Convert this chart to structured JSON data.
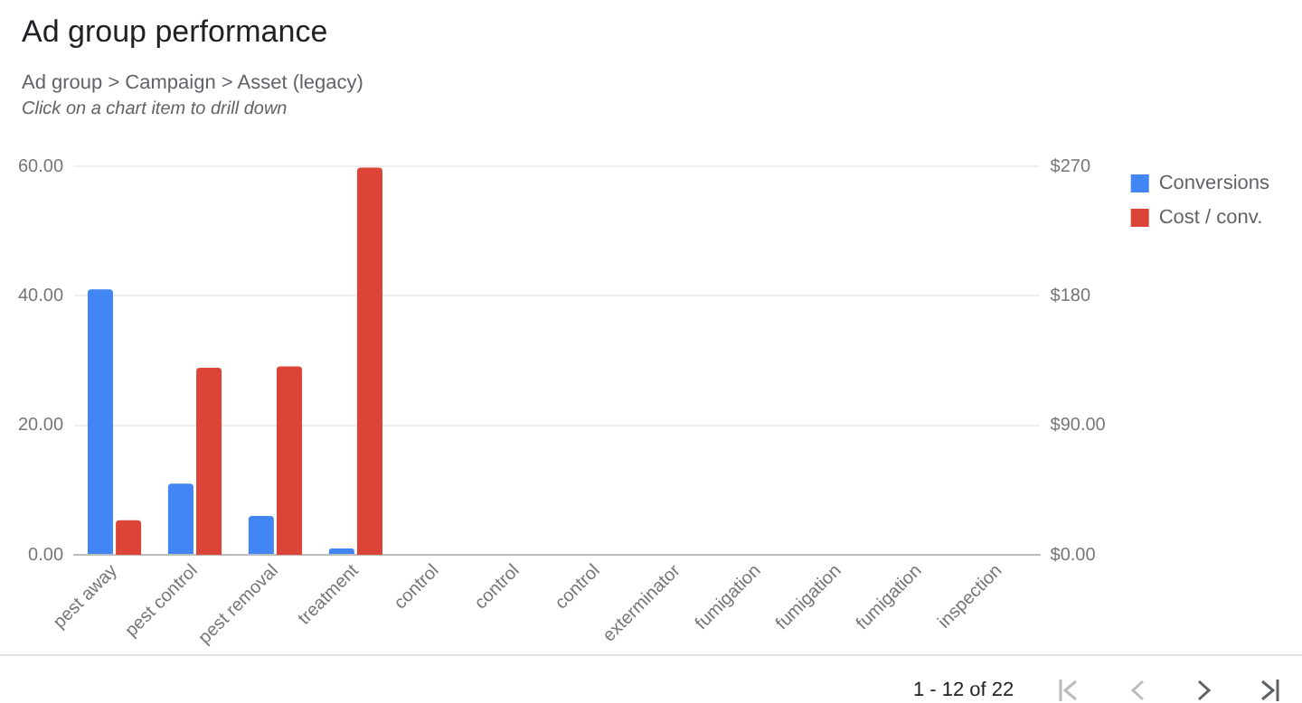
{
  "chart_data": {
    "type": "bar",
    "title": "Ad group performance",
    "subtitle": "Ad group > Campaign > Asset (legacy)",
    "annotations": [
      "Click on a chart item to drill down",
      "1 - 12 of 22"
    ],
    "categories": [
      "pest away",
      "pest control",
      "pest removal",
      "treatment",
      "control",
      "control",
      "control",
      "exterminator",
      "fumigation",
      "fumigation",
      "fumigation",
      "inspection"
    ],
    "series": [
      {
        "name": "Conversions",
        "color": "#4285f4",
        "values": [
          41,
          11,
          6,
          1,
          0,
          0,
          0,
          0,
          0,
          0,
          0,
          0
        ]
      },
      {
        "name": "Cost / conv.",
        "color": "#db4437",
        "axis": "y2",
        "values": [
          24,
          130,
          131,
          269,
          0,
          0,
          0,
          0,
          0,
          0,
          0,
          0
        ]
      }
    ],
    "ylim": [
      0,
      60
    ],
    "yticks": [
      {
        "value": 0,
        "label": "0.00"
      },
      {
        "value": 20,
        "label": "20.00"
      },
      {
        "value": 40,
        "label": "40.00"
      },
      {
        "value": 60,
        "label": "60.00"
      }
    ],
    "y2lim": [
      0,
      270
    ],
    "y2ticks": [
      {
        "value": 0,
        "label": "$0.00"
      },
      {
        "value": 90,
        "label": "$90.00"
      },
      {
        "value": 180,
        "label": "$180"
      },
      {
        "value": 270,
        "label": "$270"
      }
    ],
    "grid": "y",
    "legend": "top right"
  }
}
